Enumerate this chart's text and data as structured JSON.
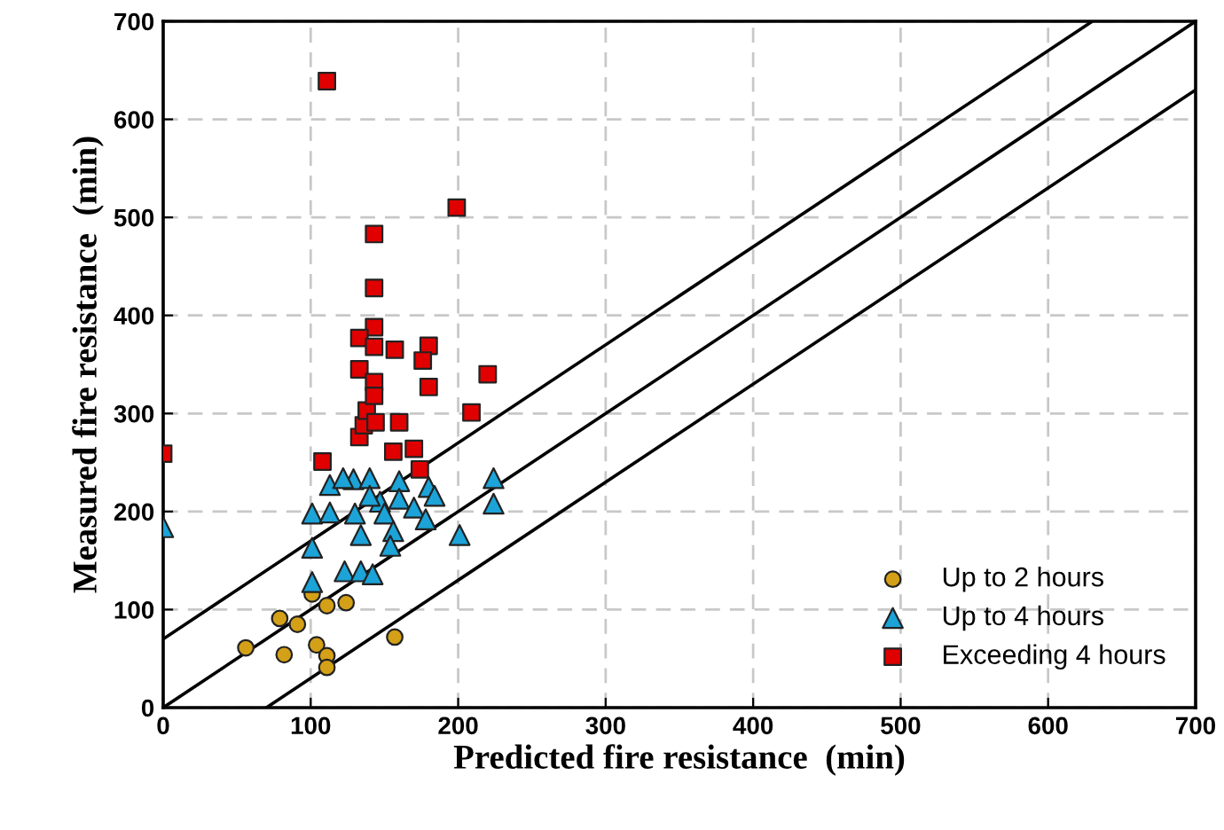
{
  "chart_data": {
    "type": "scatter",
    "xlabel": "Predicted fire resistance  (min)",
    "ylabel": "Measured fire resistance  (min)",
    "xlim": [
      0,
      700
    ],
    "ylim": [
      0,
      700
    ],
    "xticks": [
      0,
      100,
      200,
      300,
      400,
      500,
      600,
      700
    ],
    "yticks": [
      0,
      100,
      200,
      300,
      400,
      500,
      600,
      700
    ],
    "grid": true,
    "legend": "bottom right",
    "series": [
      {
        "type": "line",
        "color": "#000000",
        "x": [
          0,
          630
        ],
        "values": [
          70,
          700
        ]
      },
      {
        "type": "line",
        "color": "#000000",
        "x": [
          0,
          700
        ],
        "values": [
          0,
          700
        ]
      },
      {
        "type": "line",
        "color": "#000000",
        "x": [
          70,
          700
        ],
        "values": [
          0,
          630
        ]
      },
      {
        "name": "Up to 2 hours",
        "color": "#d4a017",
        "marker": "circle",
        "x": [
          56,
          79,
          91,
          82,
          104,
          111,
          111,
          111,
          124,
          101,
          157
        ],
        "values": [
          61,
          91,
          85,
          54,
          64,
          53,
          41,
          104,
          107,
          116,
          72
        ]
      },
      {
        "name": "Up to 4 hours",
        "color": "#1ca3d8",
        "marker": "triangle",
        "x": [
          0,
          101,
          101,
          123,
          134,
          142,
          101,
          113,
          113,
          129,
          140,
          160,
          180,
          130,
          134,
          147,
          150,
          156,
          154,
          160,
          170,
          178,
          184,
          201,
          224,
          224,
          122,
          140
        ],
        "values": [
          184,
          128,
          163,
          139,
          139,
          136,
          198,
          199,
          227,
          233,
          234,
          231,
          225,
          198,
          176,
          210,
          198,
          180,
          165,
          213,
          204,
          192,
          216,
          176,
          234,
          208,
          234,
          216
        ]
      },
      {
        "name": "Exceeding 4 hours",
        "color": "#e00000",
        "marker": "square",
        "x": [
          0,
          108,
          133,
          136,
          138,
          144,
          160,
          170,
          174,
          156,
          209,
          111,
          199,
          143,
          143,
          143,
          133,
          143,
          157,
          180,
          176,
          133,
          143,
          143,
          180,
          220
        ],
        "values": [
          259,
          251,
          276,
          288,
          303,
          291,
          291,
          264,
          243,
          261,
          301,
          639,
          510,
          483,
          428,
          388,
          377,
          368,
          365,
          369,
          354,
          345,
          332,
          318,
          327,
          340
        ]
      }
    ]
  }
}
